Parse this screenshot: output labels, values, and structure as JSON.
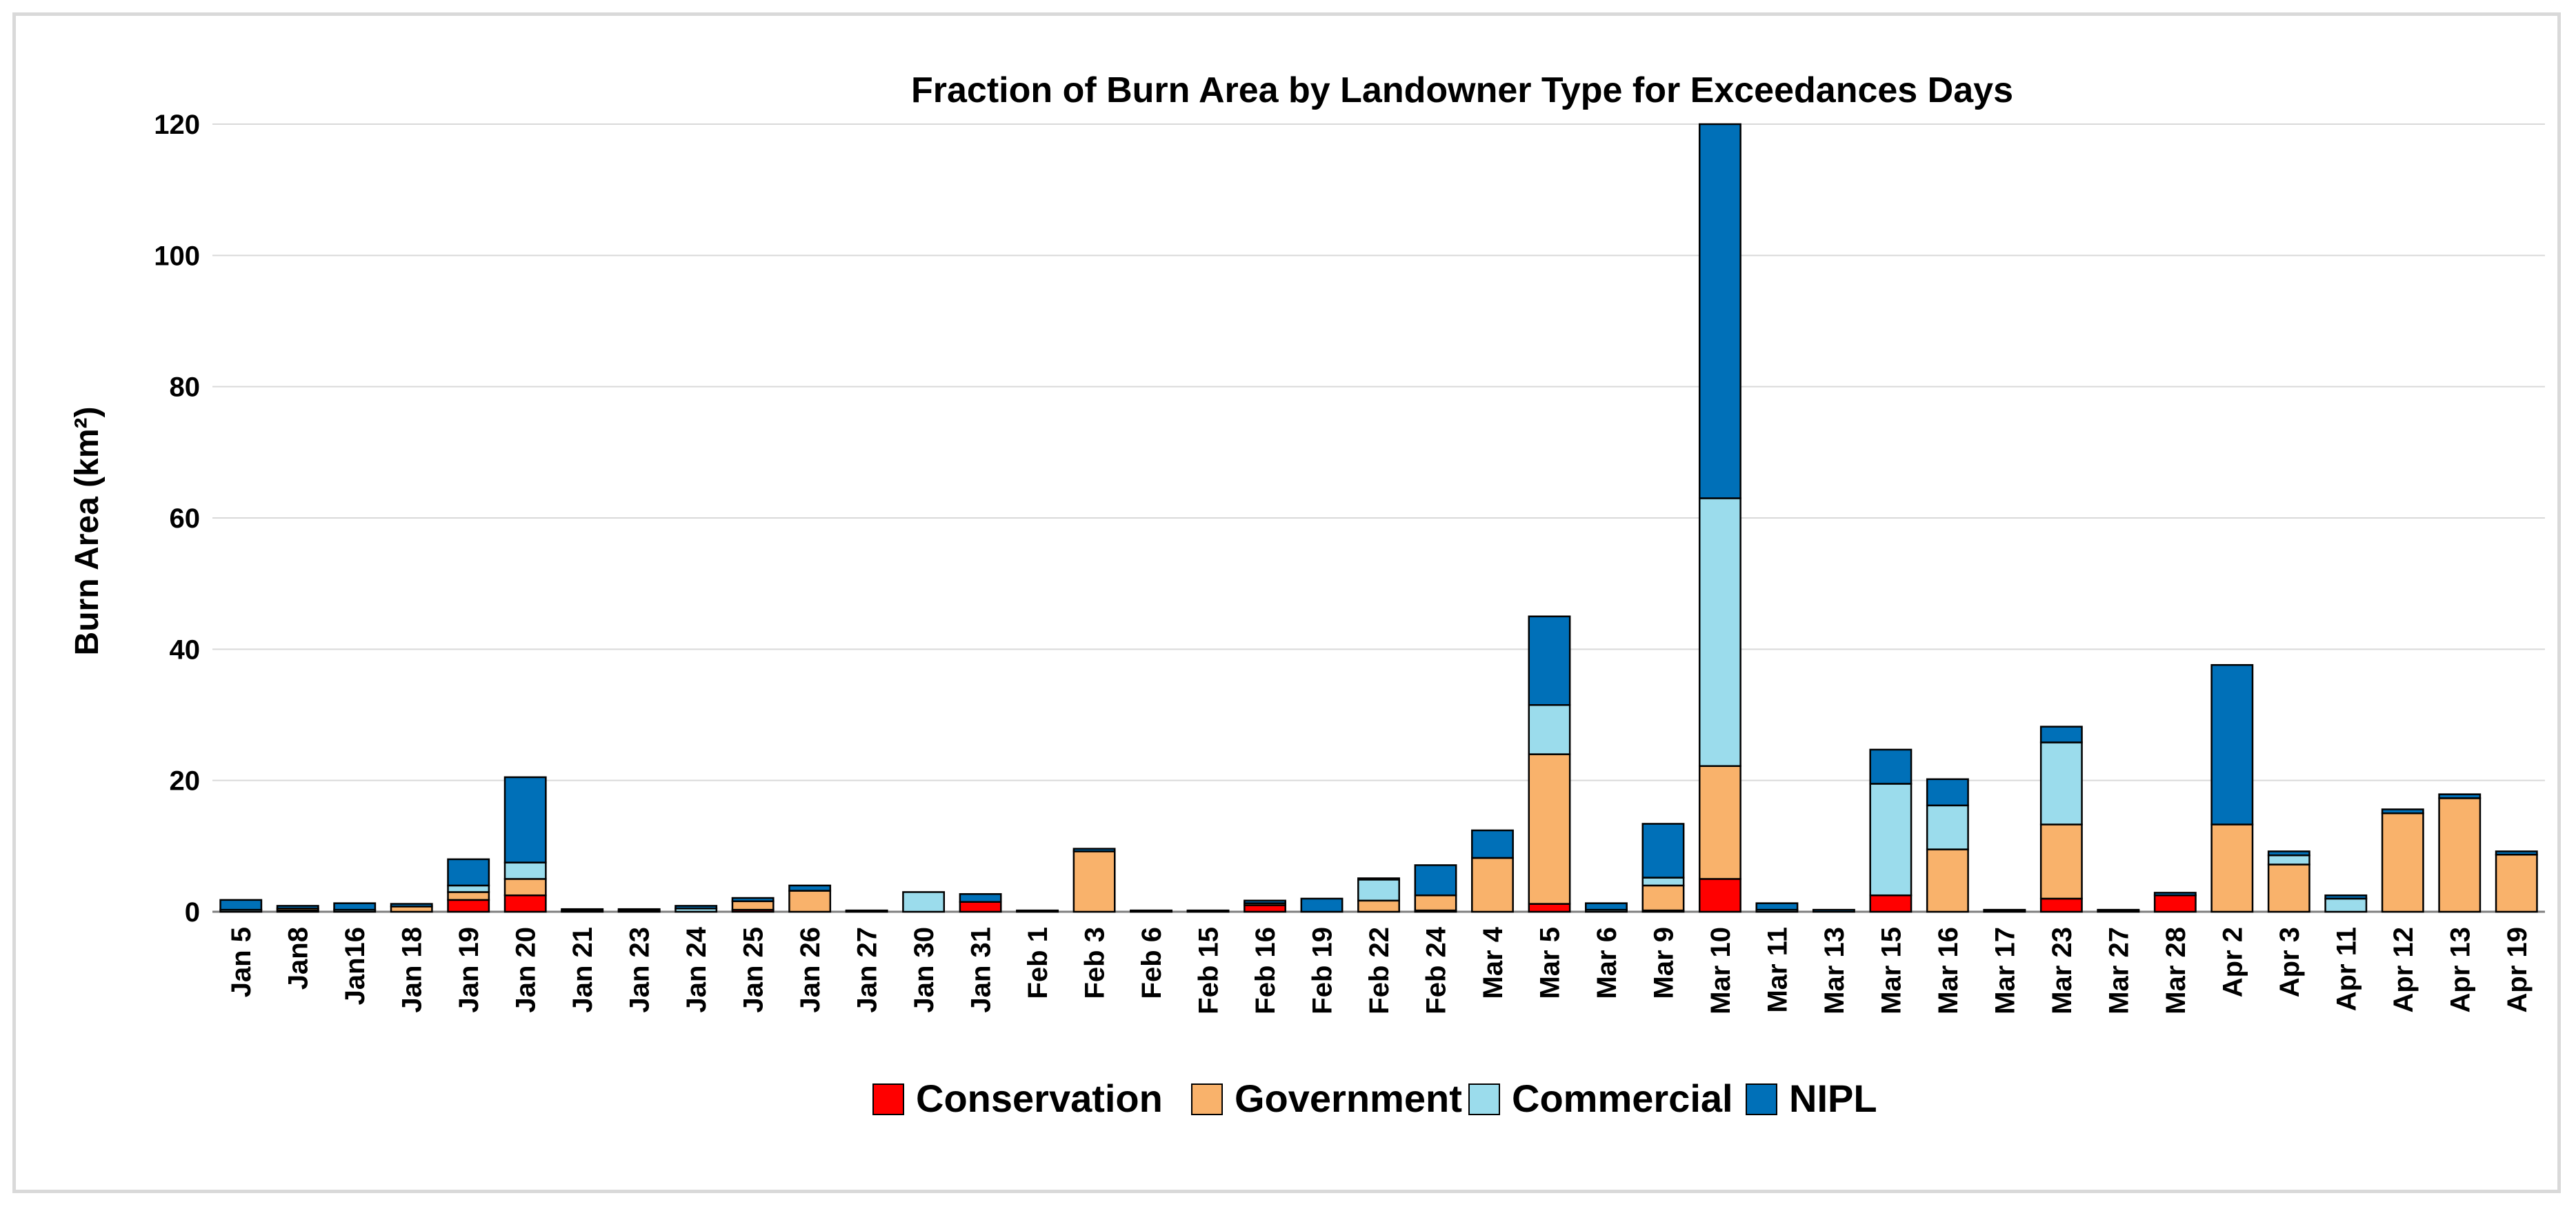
{
  "chart_data": {
    "type": "bar",
    "stacked": true,
    "title": "Fraction of Burn Area by Landowner Type for Exceedances Days",
    "xlabel": "",
    "ylabel": "Burn Area (km²)",
    "ylim": [
      0,
      120
    ],
    "yticks": [
      0,
      20,
      40,
      60,
      80,
      100,
      120
    ],
    "grid": true,
    "legend_position": "bottom",
    "categories": [
      "Jan 5",
      "Jan8",
      "Jan16",
      "Jan 18",
      "Jan 19",
      "Jan 20",
      "Jan 21",
      "Jan 23",
      "Jan 24",
      "Jan 25",
      "Jan 26",
      "Jan 27",
      "Jan 30",
      "Jan 31",
      "Feb 1",
      "Feb 3",
      "Feb 6",
      "Feb 15",
      "Feb 16",
      "Feb 19",
      "Feb 22",
      "Feb 24",
      "Mar 4",
      "Mar 5",
      "Mar 6",
      "Mar 9",
      "Mar 10",
      "Mar 11",
      "Mar 13",
      "Mar 15",
      "Mar 16",
      "Mar 17",
      "Mar 23",
      "Mar 27",
      "Mar 28",
      "Apr 2",
      "Apr 3",
      "Apr 11",
      "Apr 12",
      "Apr 13",
      "Apr 19"
    ],
    "series": [
      {
        "name": "Conservation",
        "color": "#ff0000",
        "values": [
          0,
          0.2,
          0,
          0,
          1.8,
          2.5,
          0,
          0,
          0,
          0.3,
          0,
          0,
          0,
          1.5,
          0,
          0,
          0,
          0,
          1,
          0,
          0,
          0.2,
          0,
          1.2,
          0,
          0.2,
          5,
          0,
          0,
          2.5,
          0,
          0,
          2,
          0,
          2.5,
          0,
          0,
          0,
          0,
          0,
          0
        ]
      },
      {
        "name": "Government",
        "color": "#f9b26b",
        "values": [
          0,
          0.3,
          0,
          0.8,
          1.2,
          2.5,
          0,
          0,
          0,
          1.3,
          3.2,
          0,
          0,
          0,
          0,
          9.2,
          0,
          0,
          0.3,
          0,
          1.7,
          2.3,
          8.2,
          22.8,
          0,
          3.8,
          17.2,
          0,
          0,
          0,
          9.5,
          0,
          11.3,
          0,
          0,
          13.3,
          7.2,
          0,
          15,
          17.3,
          8.7
        ]
      },
      {
        "name": "Commercial",
        "color": "#9bdcec",
        "values": [
          0.3,
          0,
          0.3,
          0,
          1,
          2.5,
          0.2,
          0.2,
          0.5,
          0,
          0,
          0.1,
          3,
          0,
          0.1,
          0,
          0.1,
          0.1,
          0,
          0,
          3.2,
          0,
          0,
          7.5,
          0.3,
          1.2,
          40.8,
          0.3,
          0,
          17,
          6.7,
          0.2,
          12.5,
          0.2,
          0,
          0,
          1.4,
          2,
          0,
          0,
          0
        ]
      },
      {
        "name": "NIPL",
        "color": "#0070b8",
        "values": [
          1.5,
          0.4,
          1,
          0.4,
          4,
          13,
          0.2,
          0.2,
          0.4,
          0.5,
          0.8,
          0.1,
          0,
          1.2,
          0.1,
          0.4,
          0.1,
          0.1,
          0.4,
          2,
          0.2,
          4.6,
          4.2,
          13.5,
          1,
          8.2,
          57,
          1,
          0.3,
          5.2,
          4,
          0.1,
          2.4,
          0.1,
          0.4,
          24.3,
          0.6,
          0.5,
          0.6,
          0.6,
          0.5
        ]
      }
    ]
  }
}
